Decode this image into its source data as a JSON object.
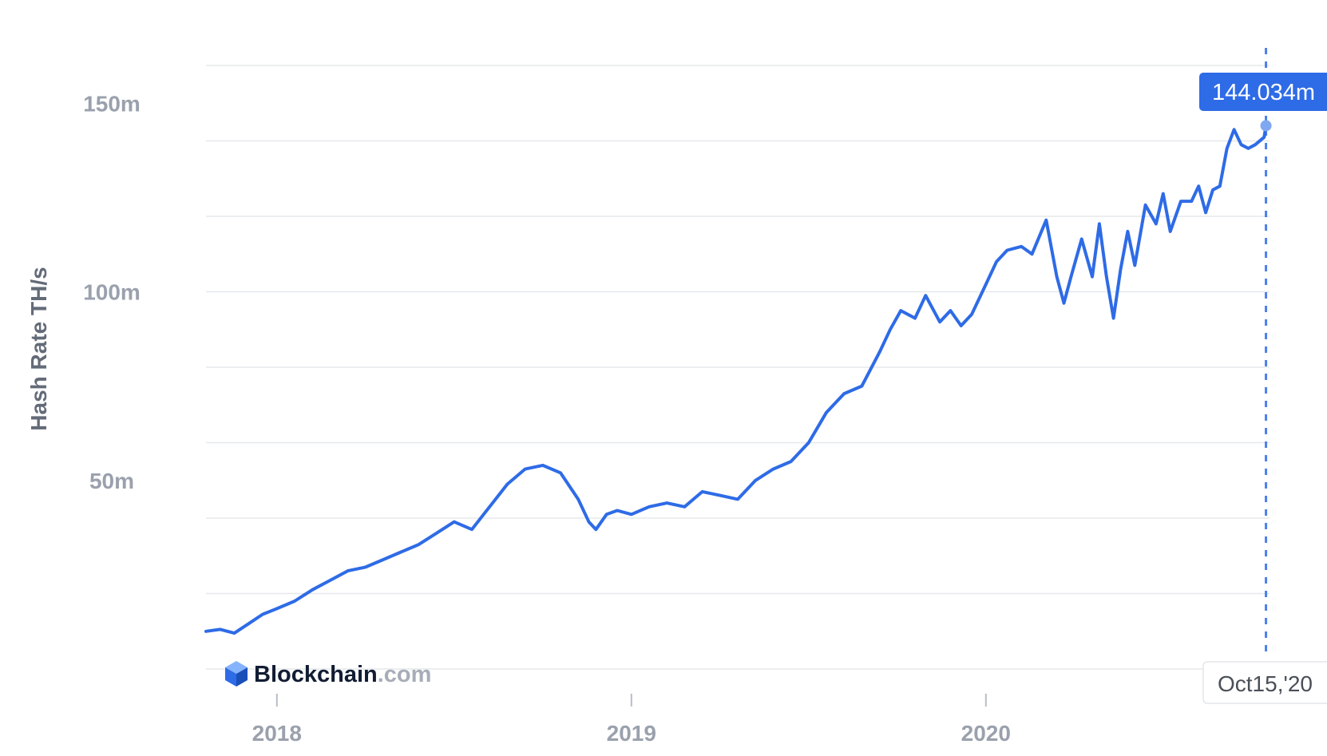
{
  "chart_data": {
    "type": "line",
    "title": "",
    "xlabel": "",
    "ylabel": "Hash Rate TH/s",
    "ylim": [
      0,
      160
    ],
    "y_ticks": [
      {
        "value": 50,
        "label": "50m"
      },
      {
        "value": 100,
        "label": "100m"
      },
      {
        "value": 150,
        "label": "150m"
      }
    ],
    "x_ticks": [
      {
        "value": 2018.0,
        "label": "2018"
      },
      {
        "value": 2019.0,
        "label": "2019"
      },
      {
        "value": 2020.0,
        "label": "2020"
      }
    ],
    "xlim": [
      2017.8,
      2020.8
    ],
    "grid": true,
    "line_color": "#2e6be6",
    "series": [
      {
        "name": "",
        "x": [
          2017.8,
          2017.84,
          2017.88,
          2017.92,
          2017.96,
          2018.0,
          2018.05,
          2018.1,
          2018.15,
          2018.2,
          2018.25,
          2018.3,
          2018.35,
          2018.4,
          2018.45,
          2018.5,
          2018.55,
          2018.6,
          2018.65,
          2018.7,
          2018.75,
          2018.8,
          2018.85,
          2018.88,
          2018.9,
          2018.93,
          2018.96,
          2019.0,
          2019.05,
          2019.1,
          2019.15,
          2019.2,
          2019.25,
          2019.3,
          2019.35,
          2019.4,
          2019.45,
          2019.5,
          2019.55,
          2019.6,
          2019.65,
          2019.7,
          2019.73,
          2019.76,
          2019.8,
          2019.83,
          2019.87,
          2019.9,
          2019.93,
          2019.96,
          2020.0,
          2020.03,
          2020.06,
          2020.1,
          2020.13,
          2020.17,
          2020.2,
          2020.22,
          2020.24,
          2020.27,
          2020.3,
          2020.32,
          2020.34,
          2020.36,
          2020.38,
          2020.4,
          2020.42,
          2020.45,
          2020.48,
          2020.5,
          2020.52,
          2020.55,
          2020.58,
          2020.6,
          2020.62,
          2020.64,
          2020.66,
          2020.68,
          2020.7,
          2020.72,
          2020.74,
          2020.76,
          2020.785,
          2020.79
        ],
        "y": [
          10,
          10.5,
          9.5,
          12,
          14.5,
          16,
          18,
          21,
          23.5,
          26,
          27,
          29,
          31,
          33,
          36,
          39,
          37,
          43,
          49,
          53,
          54,
          52,
          45,
          39,
          37,
          41,
          42,
          41,
          43,
          44,
          43,
          47,
          46,
          45,
          50,
          53,
          55,
          60,
          68,
          73,
          75,
          84,
          90,
          95,
          93,
          99,
          92,
          95,
          91,
          94,
          102,
          108,
          111,
          112,
          110,
          119,
          104,
          97,
          104,
          114,
          104,
          118,
          104,
          93,
          106,
          116,
          107,
          123,
          118,
          126,
          116,
          124,
          124,
          128,
          121,
          127,
          128,
          138,
          143,
          139,
          138,
          139,
          141,
          144.034
        ]
      }
    ],
    "highlight": {
      "x": 2020.79,
      "value_label": "144.034m",
      "date_label": "Oct15,'20",
      "color": "#2e6be6"
    },
    "brand": {
      "main": "Blockchain",
      "suffix": ".com"
    }
  }
}
